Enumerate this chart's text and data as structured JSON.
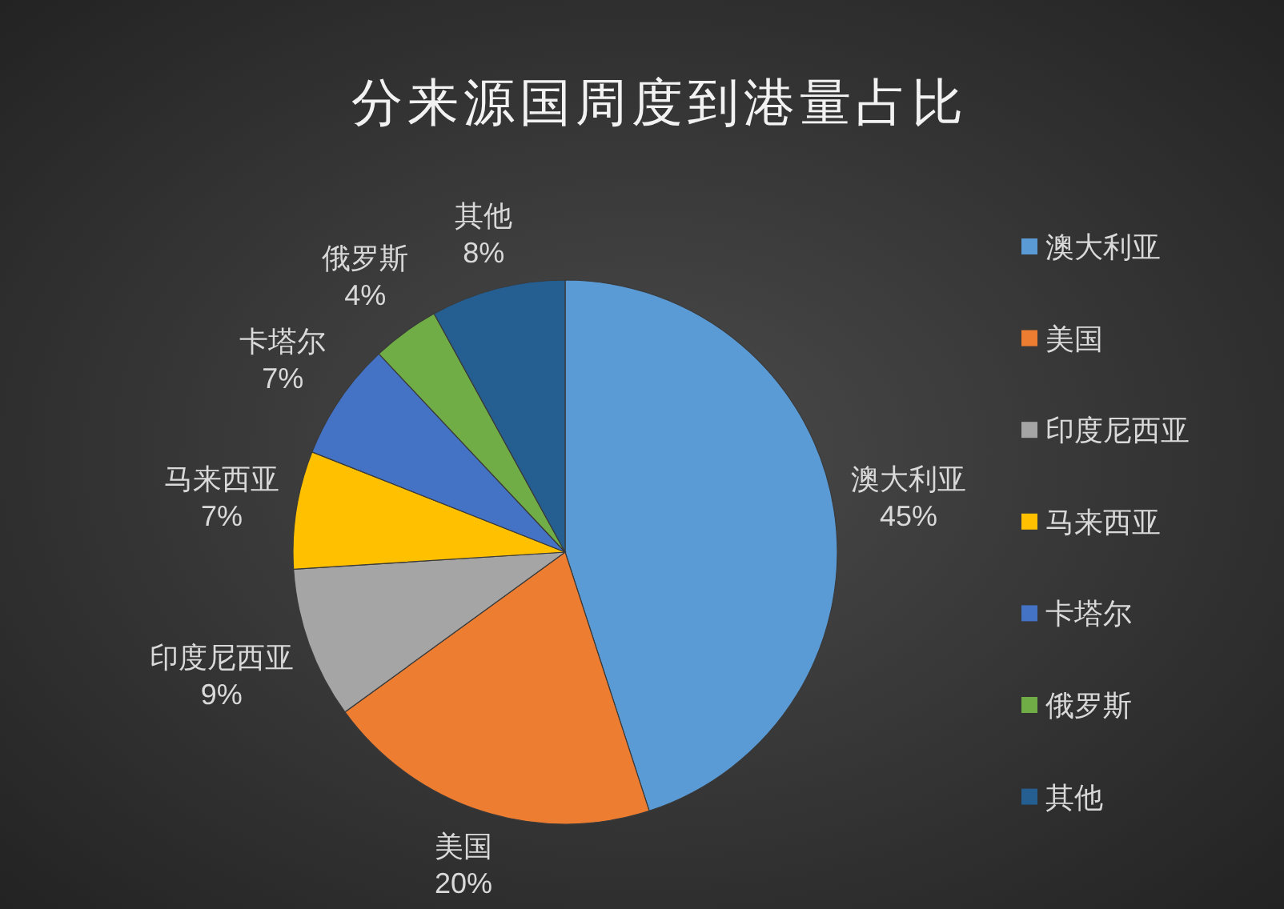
{
  "chart_data": {
    "type": "pie",
    "title": "分来源国周度到港量占比",
    "categories": [
      "澳大利亚",
      "美国",
      "印度尼西亚",
      "马来西亚",
      "卡塔尔",
      "俄罗斯",
      "其他"
    ],
    "values": [
      45,
      20,
      9,
      7,
      7,
      4,
      8
    ],
    "value_labels": [
      "45%",
      "20%",
      "9%",
      "7%",
      "7%",
      "4%",
      "8%"
    ],
    "colors": [
      "#5b9bd5",
      "#ed7d31",
      "#a5a5a5",
      "#ffc000",
      "#4472c4",
      "#70ad47",
      "#255e91"
    ],
    "legend": "right"
  }
}
